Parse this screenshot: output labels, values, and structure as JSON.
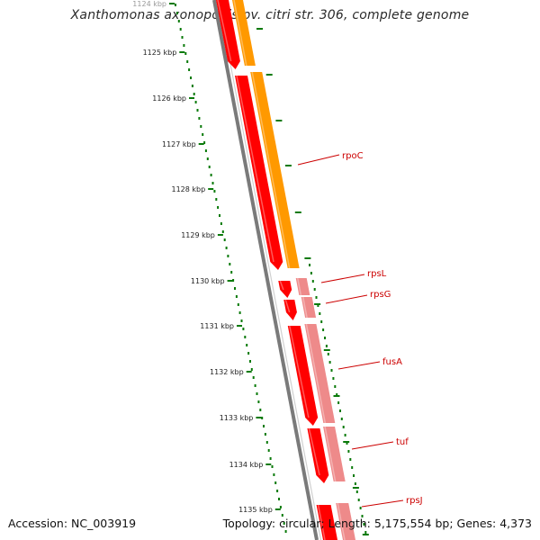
{
  "title": "Xanthomonas axonopodis pv. citri str. 306, complete genome",
  "accession": "Accession: NC_003919",
  "summary": "Topology: circular; Length: 5,175,554 bp; Genes: 4,373",
  "colors": {
    "backbone": "#7a7a7a",
    "tick_ruler": "#0a7a0a",
    "outer_tick": "#0a7a0a",
    "forward_gene": "#ff0000",
    "cds_orange": "#ff9900",
    "cds_pink": "#ee8a8a",
    "label": "#cc0000"
  },
  "ruler_labels": [
    "1124 kbp",
    "1125 kbp",
    "1126 kbp",
    "1127 kbp",
    "1128 kbp",
    "1129 kbp",
    "1130 kbp",
    "1131 kbp",
    "1132 kbp",
    "1133 kbp",
    "1134 kbp",
    "1135 kbp"
  ],
  "gene_labels": [
    "rpoC",
    "rpsL",
    "rpsG",
    "fusA",
    "tuf",
    "rpsJ"
  ]
}
